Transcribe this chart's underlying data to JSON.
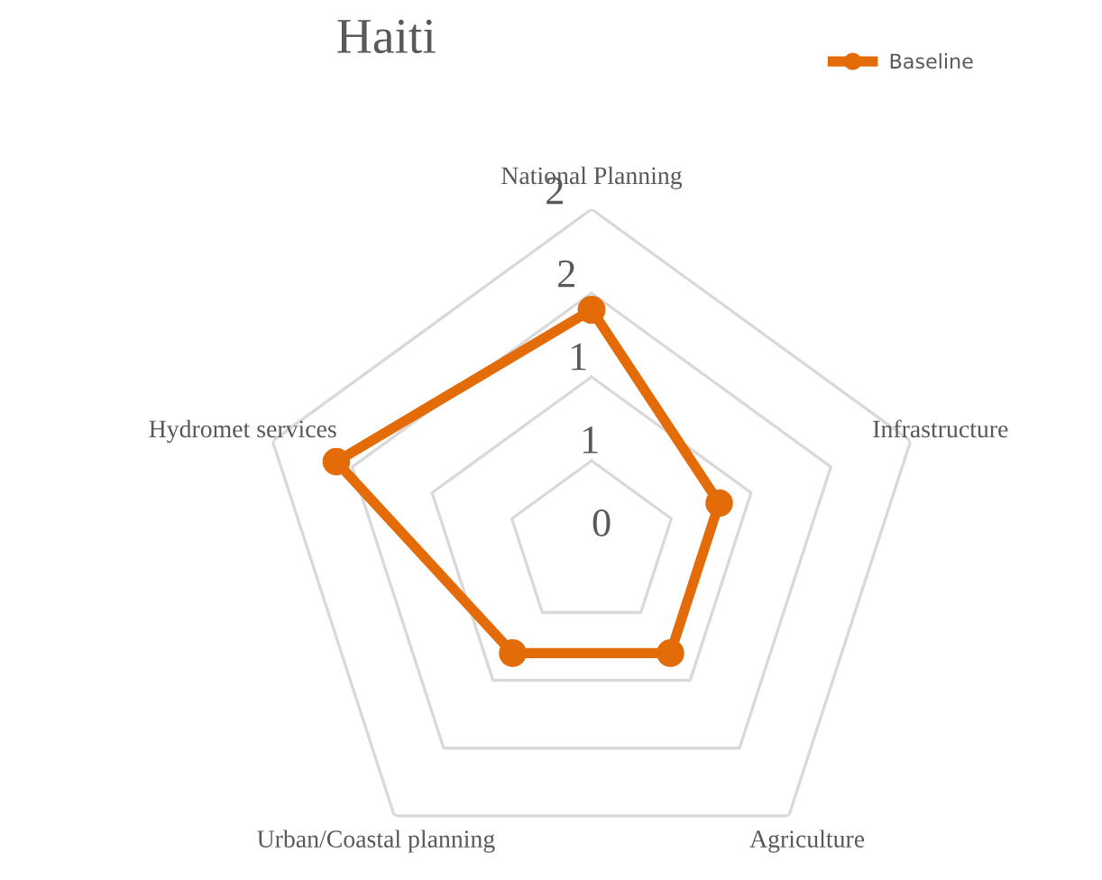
{
  "chart_data": {
    "type": "radar",
    "title": "Haiti",
    "categories": [
      "National Planning",
      "Infrastructure",
      "Agriculture",
      "Urban/Coastal planning",
      "Hydromet services"
    ],
    "series": [
      {
        "name": "Baseline",
        "color": "#e36c09",
        "values": [
          1.4,
          0.8,
          0.8,
          0.8,
          1.6
        ]
      }
    ],
    "ylim": [
      0,
      2
    ],
    "yticks": [
      0,
      {
        "value": 0.5,
        "label": "1"
      },
      {
        "value": 1,
        "label": "1"
      },
      {
        "value": 1.5,
        "label": "2"
      },
      2
    ],
    "grid": true,
    "legend": "top right",
    "marker": "circle",
    "line_style": "solid"
  }
}
